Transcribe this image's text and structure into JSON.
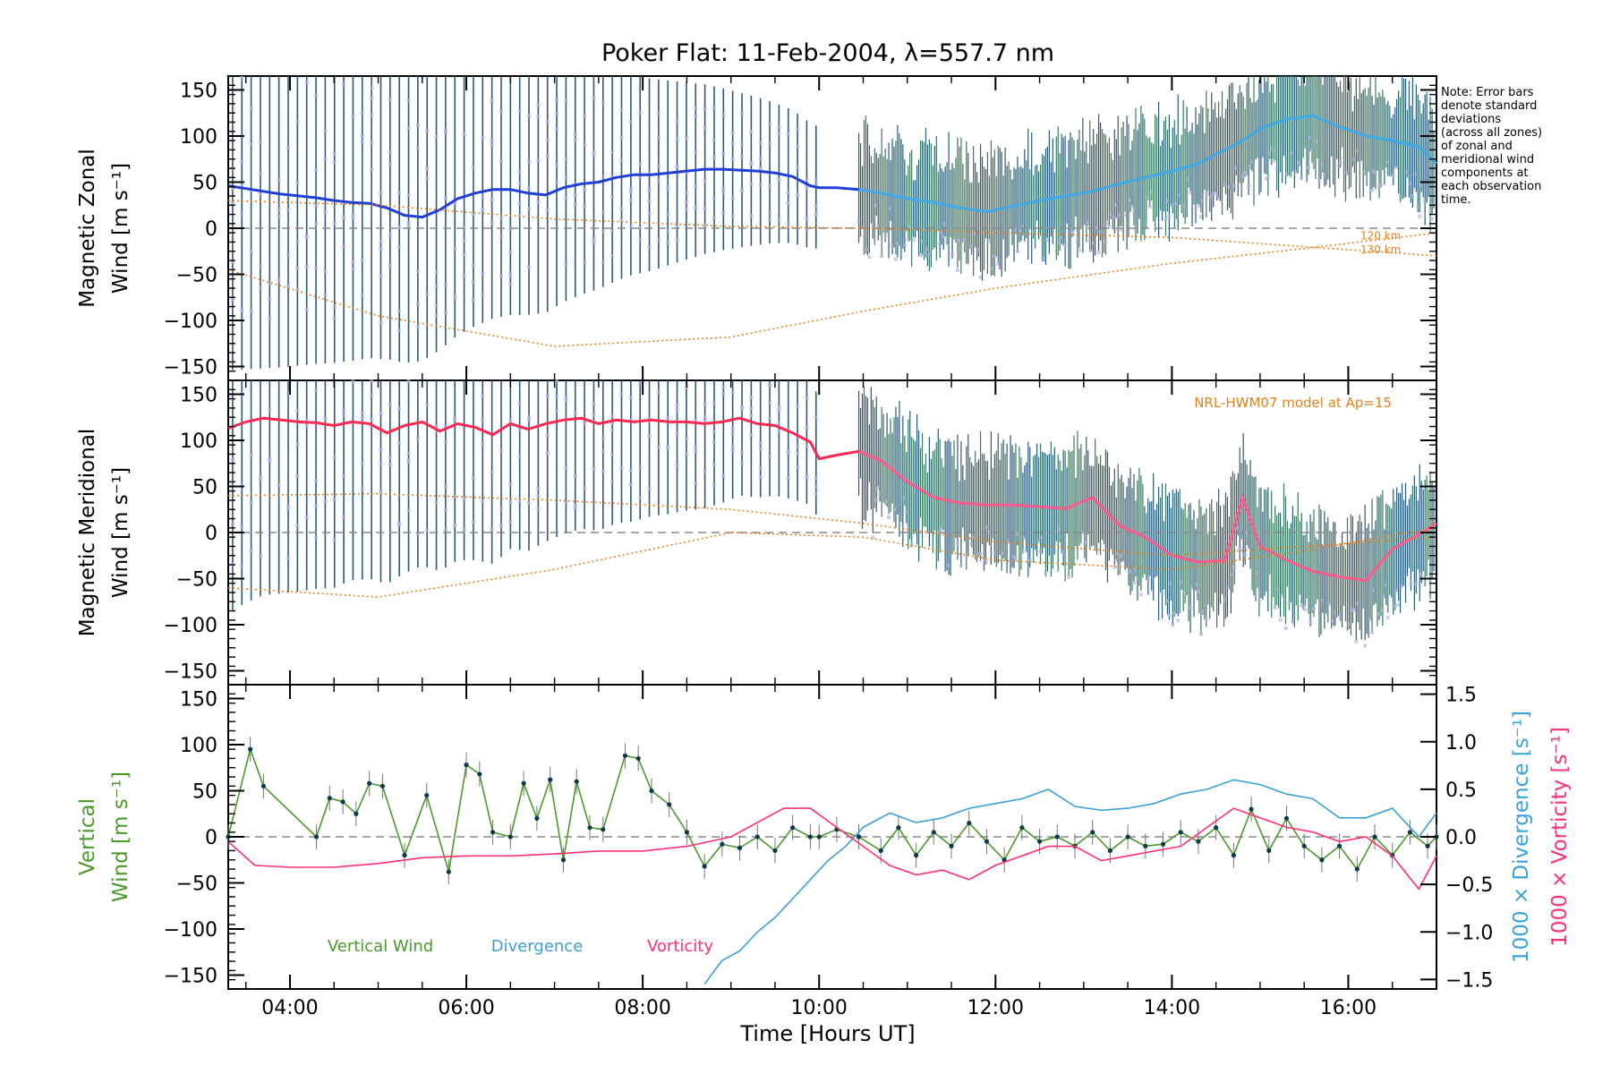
{
  "chart_data": {
    "type": "line",
    "title": "Poker Flat: 11-Feb-2004, λ=557.7 nm",
    "xlabel": "Time [Hours UT]",
    "x_ticks": [
      "04:00",
      "06:00",
      "08:00",
      "10:00",
      "12:00",
      "14:00",
      "16:00"
    ],
    "x_tick_hours": [
      4,
      6,
      8,
      10,
      12,
      14,
      16
    ],
    "xlim": [
      3.3,
      17.0
    ],
    "note": [
      "Note: Error bars",
      "denote standard",
      "deviations",
      "(across all zones)",
      "of zonal and",
      "meridional wind",
      "components at",
      "each observation",
      "time."
    ],
    "panels": [
      {
        "name": "zonal",
        "ylabel_line1": "Magnetic Zonal",
        "ylabel_line2": "Wind [m s⁻¹]",
        "ylim": [
          -165,
          165
        ],
        "y_ticks": [
          -150,
          -100,
          -50,
          0,
          50,
          100,
          150
        ],
        "model_label": "NRL-HWM07 model at Ap=15",
        "model_label_visible": false,
        "altitude_labels": [
          "120 km",
          "130 km"
        ],
        "series": [
          {
            "name": "Magnetic zonal wind (early)",
            "color": "#1f3fd8",
            "x": [
              3.3,
              3.5,
              3.7,
              3.9,
              4.1,
              4.3,
              4.5,
              4.7,
              4.9,
              5.1,
              5.3,
              5.5,
              5.7,
              5.9,
              6.1,
              6.3,
              6.5,
              6.7,
              6.9,
              7.1,
              7.3,
              7.5,
              7.7,
              7.9,
              8.1,
              8.3,
              8.5,
              8.7,
              8.9,
              9.1,
              9.3,
              9.5,
              9.7,
              9.9,
              10.0,
              10.2,
              10.45
            ],
            "y": [
              46,
              43,
              40,
              37,
              35,
              33,
              30,
              28,
              27,
              22,
              14,
              12,
              20,
              32,
              38,
              42,
              42,
              38,
              36,
              44,
              48,
              50,
              55,
              58,
              58,
              60,
              62,
              64,
              64,
              63,
              62,
              60,
              56,
              46,
              44,
              44,
              42
            ]
          },
          {
            "name": "Magnetic zonal wind (dense)",
            "color": "#3fa9e8",
            "x": [
              10.45,
              10.7,
              11.0,
              11.3,
              11.6,
              11.9,
              12.2,
              12.5,
              12.8,
              13.1,
              13.4,
              13.7,
              14.0,
              14.3,
              14.6,
              14.8,
              15.0,
              15.3,
              15.6,
              15.9,
              16.2,
              16.5,
              16.8,
              17.0
            ],
            "y": [
              42,
              38,
              32,
              28,
              22,
              18,
              24,
              30,
              35,
              40,
              48,
              55,
              62,
              70,
              85,
              95,
              108,
              118,
              122,
              110,
              100,
              95,
              88,
              70
            ]
          },
          {
            "name": "Model 120 km",
            "color": "#e8801a",
            "style": "dotted",
            "x": [
              3.3,
              5,
              7,
              9,
              10.5,
              12,
              14,
              15.5,
              17
            ],
            "y": [
              30,
              25,
              10,
              2,
              0,
              -5,
              -10,
              -20,
              -30
            ]
          },
          {
            "name": "Model 130 km",
            "color": "#e8801a",
            "style": "dotted",
            "x": [
              3.3,
              5,
              7,
              9,
              10.5,
              12,
              14,
              15.5,
              17
            ],
            "y": [
              -45,
              -95,
              -128,
              -118,
              -90,
              -65,
              -38,
              -22,
              -5
            ]
          }
        ]
      },
      {
        "name": "meridional",
        "ylabel_line1": "Magnetic Meridional",
        "ylabel_line2": "Wind [m s⁻¹]",
        "ylim": [
          -165,
          165
        ],
        "y_ticks": [
          -150,
          -100,
          -50,
          0,
          50,
          100,
          150
        ],
        "model_label": "NRL-HWM07 model at Ap=15",
        "model_label_visible": true,
        "series": [
          {
            "name": "Magnetic meridional wind (early)",
            "color": "#ff2850",
            "x": [
              3.3,
              3.5,
              3.7,
              3.9,
              4.1,
              4.3,
              4.5,
              4.7,
              4.9,
              5.1,
              5.3,
              5.5,
              5.7,
              5.9,
              6.1,
              6.3,
              6.5,
              6.7,
              6.9,
              7.1,
              7.3,
              7.5,
              7.7,
              7.9,
              8.1,
              8.3,
              8.5,
              8.7,
              8.9,
              9.1,
              9.3,
              9.5,
              9.7,
              9.9,
              10.0,
              10.2,
              10.45
            ],
            "y": [
              113,
              120,
              124,
              122,
              120,
              119,
              116,
              120,
              118,
              108,
              116,
              120,
              110,
              118,
              114,
              106,
              118,
              112,
              118,
              122,
              124,
              118,
              122,
              120,
              122,
              120,
              120,
              118,
              120,
              124,
              118,
              116,
              108,
              98,
              80,
              84,
              88
            ]
          },
          {
            "name": "Magnetic meridional wind (dense)",
            "color": "#ff5a8c",
            "x": [
              10.45,
              10.7,
              11.0,
              11.3,
              11.6,
              11.9,
              12.2,
              12.5,
              12.8,
              13.1,
              13.4,
              13.7,
              14.0,
              14.3,
              14.6,
              14.8,
              15.0,
              15.3,
              15.6,
              15.9,
              16.2,
              16.5,
              16.8,
              17.0
            ],
            "y": [
              88,
              78,
              55,
              38,
              32,
              30,
              30,
              28,
              26,
              38,
              8,
              -5,
              -25,
              -32,
              -30,
              38,
              -15,
              -30,
              -42,
              -48,
              -52,
              -18,
              -2,
              10
            ]
          },
          {
            "name": "Model 120 km",
            "color": "#e8801a",
            "style": "dotted",
            "x": [
              3.3,
              5,
              7,
              9,
              10.5,
              12,
              14,
              15.5,
              17
            ],
            "y": [
              -60,
              -70,
              -40,
              0,
              -5,
              -30,
              -40,
              -20,
              5
            ]
          },
          {
            "name": "Model 130 km",
            "color": "#e8801a",
            "style": "dotted",
            "x": [
              3.3,
              5,
              7,
              9,
              10.5,
              12,
              14,
              15.5,
              17
            ],
            "y": [
              40,
              42,
              35,
              25,
              10,
              -10,
              -25,
              -15,
              -5
            ]
          }
        ]
      },
      {
        "name": "vertical",
        "ylabel_line1": "Vertical",
        "ylabel_line2": "Wind [m s⁻¹]",
        "ylim": [
          -165,
          165
        ],
        "y_ticks": [
          -150,
          -100,
          -50,
          0,
          50,
          100,
          150
        ],
        "right_axis": {
          "ylim": [
            -1.6,
            1.6
          ],
          "ticks": [
            1.5,
            1.0,
            0.5,
            0.0,
            -0.5,
            -1.0,
            -1.5
          ],
          "tick_labels": [
            "1.5",
            "1.0",
            "0.5",
            "0.0",
            "−0.5",
            "−1.0",
            "−1.5"
          ],
          "label_divergence": "1000 × Divergence [s⁻¹]",
          "label_vorticity": "1000 × Vorticity [s⁻¹]"
        },
        "legend": [
          {
            "label": "Vertical Wind",
            "color": "#4a9a2a"
          },
          {
            "label": "Divergence",
            "color": "#3aa0d8"
          },
          {
            "label": "Vorticity",
            "color": "#ff3070"
          }
        ],
        "series": [
          {
            "name": "Vertical Wind",
            "color": "#4a9a2a",
            "axis": "left",
            "x": [
              3.3,
              3.55,
              3.7,
              4.3,
              4.45,
              4.6,
              4.75,
              4.9,
              5.05,
              5.3,
              5.55,
              5.8,
              6.0,
              6.15,
              6.3,
              6.5,
              6.65,
              6.8,
              6.95,
              7.1,
              7.25,
              7.4,
              7.55,
              7.8,
              7.95,
              8.1,
              8.3,
              8.5,
              8.7,
              8.9,
              9.1,
              9.3,
              9.5,
              9.7,
              9.9,
              10.0,
              10.2,
              10.45
            ],
            "y": [
              0,
              95,
              55,
              0,
              42,
              38,
              25,
              58,
              55,
              -20,
              45,
              -38,
              78,
              68,
              5,
              0,
              58,
              20,
              62,
              -25,
              60,
              10,
              8,
              88,
              85,
              50,
              35,
              5,
              -32,
              -8,
              -12,
              0,
              -15,
              10,
              0,
              0,
              8,
              0
            ]
          },
          {
            "name": "Vertical Wind (dense)",
            "color": "#4a9a2a",
            "axis": "left",
            "x": [
              10.45,
              10.7,
              10.9,
              11.1,
              11.3,
              11.5,
              11.7,
              11.9,
              12.1,
              12.3,
              12.5,
              12.7,
              12.9,
              13.1,
              13.3,
              13.5,
              13.7,
              13.9,
              14.1,
              14.3,
              14.5,
              14.7,
              14.9,
              15.1,
              15.3,
              15.5,
              15.7,
              15.9,
              16.1,
              16.3,
              16.5,
              16.7,
              16.9,
              17.0
            ],
            "y": [
              0,
              -15,
              10,
              -20,
              5,
              -10,
              15,
              -5,
              -25,
              10,
              -5,
              0,
              -10,
              5,
              -15,
              0,
              -10,
              -8,
              5,
              -5,
              10,
              -20,
              30,
              -15,
              20,
              -10,
              -25,
              -10,
              -35,
              0,
              -20,
              5,
              -10,
              0
            ]
          },
          {
            "name": "Divergence",
            "color": "#3aa0d8",
            "axis": "right",
            "x": [
              8.7,
              8.9,
              9.1,
              9.3,
              9.5,
              9.7,
              9.9,
              10.1,
              10.3,
              10.5,
              10.8,
              11.1,
              11.4,
              11.7,
              12.0,
              12.3,
              12.6,
              12.9,
              13.2,
              13.5,
              13.8,
              14.1,
              14.4,
              14.7,
              15.0,
              15.3,
              15.6,
              15.9,
              16.2,
              16.5,
              16.8,
              17.0
            ],
            "y": [
              -1.55,
              -1.3,
              -1.2,
              -1.0,
              -0.85,
              -0.65,
              -0.45,
              -0.25,
              -0.1,
              0.1,
              0.25,
              0.15,
              0.2,
              0.3,
              0.35,
              0.4,
              0.5,
              0.32,
              0.28,
              0.3,
              0.35,
              0.45,
              0.5,
              0.6,
              0.55,
              0.45,
              0.4,
              0.2,
              0.2,
              0.3,
              0.0,
              0.25
            ]
          },
          {
            "name": "Vorticity",
            "color": "#ff3070",
            "axis": "right",
            "x": [
              3.3,
              3.6,
              4.0,
              4.5,
              5.0,
              5.5,
              6.0,
              6.5,
              7.0,
              7.5,
              8.0,
              8.5,
              9.0,
              9.3,
              9.6,
              9.9,
              10.2,
              10.5,
              10.8,
              11.1,
              11.4,
              11.7,
              12.0,
              12.3,
              12.6,
              12.9,
              13.2,
              13.5,
              13.8,
              14.1,
              14.4,
              14.7,
              15.0,
              15.3,
              15.6,
              15.9,
              16.2,
              16.5,
              16.8,
              17.0
            ],
            "y": [
              -0.05,
              -0.3,
              -0.32,
              -0.32,
              -0.28,
              -0.22,
              -0.2,
              -0.2,
              -0.18,
              -0.15,
              -0.15,
              -0.1,
              0.0,
              0.15,
              0.3,
              0.3,
              0.1,
              -0.1,
              -0.3,
              -0.4,
              -0.35,
              -0.45,
              -0.3,
              -0.2,
              -0.1,
              -0.1,
              -0.25,
              -0.2,
              -0.15,
              -0.1,
              0.1,
              0.3,
              0.2,
              0.1,
              0.05,
              -0.05,
              0.0,
              -0.2,
              -0.55,
              -0.2
            ]
          }
        ]
      }
    ]
  }
}
